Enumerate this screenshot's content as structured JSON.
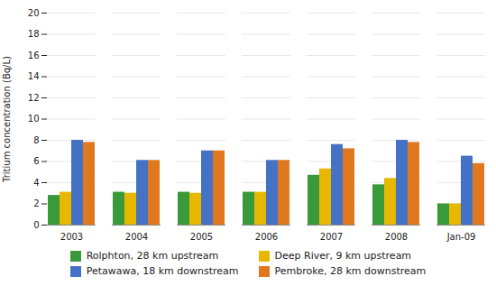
{
  "chart_data": {
    "type": "bar",
    "categories": [
      "2003",
      "2004",
      "2005",
      "2006",
      "2007",
      "2008",
      "Jan-09"
    ],
    "series": [
      {
        "name": "Rolphton, 28 km upstream",
        "color": "#3a9a3a",
        "values": [
          2.8,
          3.1,
          3.1,
          3.1,
          4.7,
          3.8,
          2.0
        ]
      },
      {
        "name": "Deep River, 9 km upstream",
        "color": "#e8b800",
        "values": [
          3.1,
          3.0,
          3.0,
          3.1,
          5.3,
          4.4,
          2.0
        ]
      },
      {
        "name": "Petawawa, 18 km downstream",
        "color": "#4472c4",
        "values": [
          8.0,
          6.1,
          7.0,
          6.1,
          7.6,
          8.0,
          6.5
        ]
      },
      {
        "name": "Pembroke, 28 km downstream",
        "color": "#e07820",
        "values": [
          7.8,
          6.1,
          7.0,
          6.1,
          7.2,
          7.8,
          5.8
        ]
      }
    ],
    "ylabel": "Tritium concentration (Bq/L)",
    "ylim": [
      0,
      20
    ],
    "yticks": [
      0,
      2,
      4,
      6,
      8,
      10,
      12,
      14,
      16,
      18,
      20
    ],
    "grid": true,
    "legend": "bottom"
  }
}
